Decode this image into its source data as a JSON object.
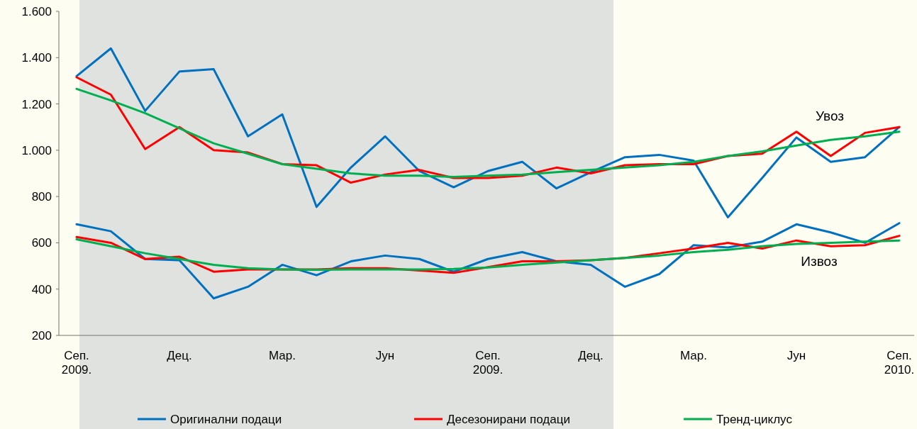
{
  "chart_data": {
    "type": "line",
    "categories": [
      "Сеп. 2009.",
      null,
      null,
      "Дец.",
      null,
      null,
      "Мар.",
      null,
      null,
      "Јун",
      null,
      null,
      "Сеп. 2009.",
      null,
      null,
      "Дец.",
      null,
      null,
      "Мар.",
      null,
      null,
      "Јун",
      null,
      null,
      "Сеп. 2010."
    ],
    "series": [
      {
        "name": "Оригинални подаци",
        "color": "#0070c0",
        "values": [
          1320,
          1440,
          1170,
          1340,
          1350,
          1060,
          1155,
          755,
          925,
          1060,
          910,
          840,
          910,
          950,
          835,
          905,
          970,
          980,
          955,
          710,
          880,
          1055,
          950,
          970,
          1100
        ]
      },
      {
        "name": "Десезонирани подаци",
        "color": "#ff0000",
        "values": [
          1315,
          1240,
          1005,
          1100,
          1000,
          990,
          940,
          935,
          860,
          895,
          915,
          880,
          880,
          890,
          925,
          900,
          935,
          940,
          940,
          975,
          985,
          1080,
          975,
          1075,
          1100
        ]
      },
      {
        "name": "Тренд-циклус",
        "color": "#00b050",
        "values": [
          1265,
          1215,
          1160,
          1095,
          1030,
          985,
          940,
          920,
          900,
          890,
          890,
          885,
          890,
          895,
          905,
          915,
          925,
          935,
          950,
          975,
          995,
          1020,
          1045,
          1060,
          1080
        ]
      },
      {
        "color": "#0070c0",
        "values": [
          680,
          650,
          530,
          525,
          360,
          410,
          505,
          460,
          520,
          545,
          530,
          475,
          530,
          560,
          520,
          505,
          410,
          465,
          590,
          580,
          605,
          680,
          645,
          600,
          685
        ]
      },
      {
        "color": "#ff0000",
        "values": [
          625,
          600,
          530,
          540,
          475,
          485,
          485,
          485,
          490,
          490,
          480,
          470,
          495,
          520,
          520,
          525,
          535,
          555,
          575,
          600,
          575,
          610,
          585,
          590,
          630
        ]
      },
      {
        "color": "#00b050",
        "values": [
          615,
          585,
          555,
          530,
          505,
          490,
          485,
          483,
          485,
          485,
          485,
          487,
          493,
          505,
          515,
          525,
          535,
          545,
          560,
          570,
          585,
          595,
          600,
          605,
          610
        ]
      }
    ],
    "ylim": [
      200,
      1600
    ],
    "yticks": [
      200,
      400,
      600,
      800,
      {
        "value": 1000,
        "label": "1.000"
      },
      {
        "value": 1200,
        "label": "1.200"
      },
      {
        "value": 1400,
        "label": "1.400"
      },
      {
        "value": 1600,
        "label": "1.600"
      }
    ],
    "annotations": [
      "Увоз",
      "Извоз"
    ],
    "legend": "bottom",
    "grid": false,
    "marker": "none",
    "line_style": "solid"
  }
}
